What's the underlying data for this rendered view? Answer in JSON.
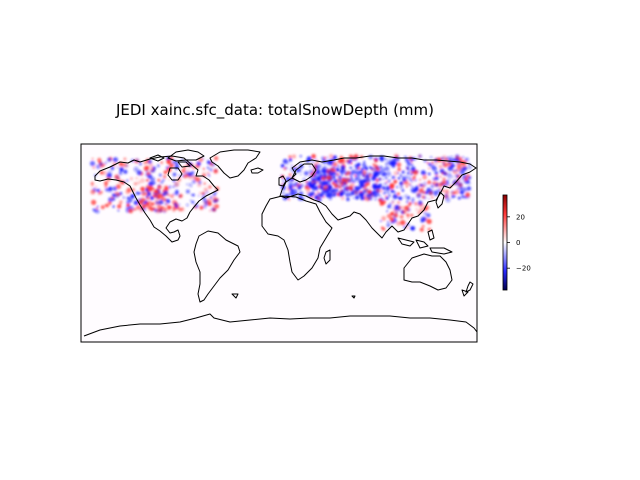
{
  "title": "JEDI xainc.sfc_data: totalSnowDepth (mm)",
  "colorbar": {
    "colormap": "seismic-like (blue to white to red)",
    "vmin": -37,
    "vmax": 37,
    "ticks": [
      {
        "value": 20,
        "label": "20"
      },
      {
        "value": 0,
        "label": "0"
      },
      {
        "value": -20,
        "label": "−20"
      }
    ],
    "colors": {
      "negative": "#1a1aff",
      "zero": "#ffffff",
      "positive": "#ff3030"
    }
  },
  "map": {
    "projection": "PlateCarree",
    "extent": "global",
    "coastline_color": "#000000",
    "background": "#fffcff"
  }
}
